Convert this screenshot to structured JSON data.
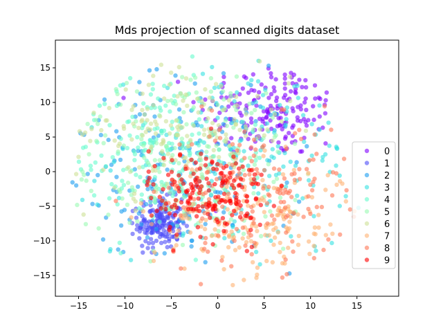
{
  "chart_data": {
    "type": "scatter",
    "title": "Mds projection of scanned digits dataset",
    "xlabel": "",
    "ylabel": "",
    "xlim": [
      -17.5,
      19.5
    ],
    "ylim": [
      -18,
      19
    ],
    "xticks": [
      -15,
      -10,
      -5,
      0,
      5,
      10,
      15
    ],
    "yticks": [
      -15,
      -10,
      -5,
      0,
      5,
      10,
      15
    ],
    "grid": false,
    "legend_position": "lower right",
    "series": [
      {
        "name": "0",
        "color": "#8000ff",
        "cx": 6,
        "cy": 9,
        "sx": 4,
        "sy": 3.5,
        "n": 180
      },
      {
        "name": "1",
        "color": "#4d4df9",
        "cx": -6.2,
        "cy": -7.5,
        "sx": 1.2,
        "sy": 1.8,
        "n": 180
      },
      {
        "name": "2",
        "color": "#1a9cf0",
        "cx": -4,
        "cy": 0,
        "sx": 6.5,
        "sy": 7,
        "n": 180
      },
      {
        "name": "3",
        "color": "#33e1e1",
        "cx": 3,
        "cy": 2,
        "sx": 7,
        "sy": 7,
        "n": 180
      },
      {
        "name": "4",
        "color": "#66fbcd",
        "cx": -7,
        "cy": 3,
        "sx": 5,
        "sy": 6,
        "n": 180
      },
      {
        "name": "5",
        "color": "#9afab3",
        "cx": -3,
        "cy": 2,
        "sx": 7,
        "sy": 7,
        "n": 180
      },
      {
        "name": "6",
        "color": "#cde196",
        "cx": -4,
        "cy": 6,
        "sx": 6,
        "sy": 5,
        "n": 180
      },
      {
        "name": "7",
        "color": "#ffb273",
        "cx": 4,
        "cy": -7,
        "sx": 5.5,
        "sy": 4,
        "n": 180
      },
      {
        "name": "8",
        "color": "#ff7655",
        "cx": 4,
        "cy": -3,
        "sx": 5,
        "sy": 5,
        "n": 180
      },
      {
        "name": "9",
        "color": "#ff0000",
        "cx": -1,
        "cy": -3,
        "sx": 3.2,
        "sy": 3.2,
        "n": 180
      }
    ]
  }
}
